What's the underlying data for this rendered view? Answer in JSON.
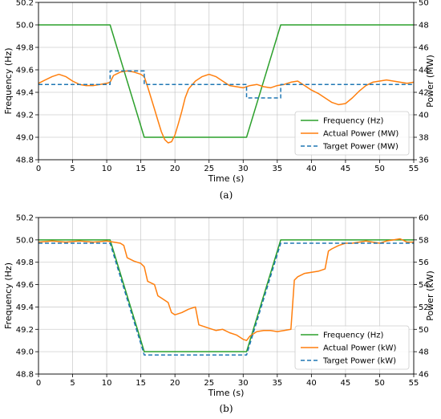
{
  "chart_data": [
    {
      "type": "line",
      "caption": "(a)",
      "xlabel": "Time (s)",
      "ylabel": "Frequency (Hz)",
      "ylabel_right": "Power (MW)",
      "xlim": [
        0,
        55
      ],
      "ylim": [
        48.8,
        50.2
      ],
      "ylim_right": [
        36,
        50
      ],
      "xticks": [
        "0",
        "5",
        "10",
        "15",
        "20",
        "25",
        "30",
        "35",
        "40",
        "45",
        "50",
        "55"
      ],
      "yticks": [
        "48.8",
        "49.0",
        "49.2",
        "49.4",
        "49.6",
        "49.8",
        "50.0",
        "50.2"
      ],
      "yticks_right": [
        "36",
        "38",
        "40",
        "42",
        "44",
        "46",
        "48",
        "50"
      ],
      "grid": true,
      "legend_position": "lower-right",
      "series": [
        {
          "name": "Frequency (Hz)",
          "axis": "left",
          "color": "#2ca02c",
          "style": "solid",
          "x": [
            0,
            10.5,
            15.5,
            30.5,
            35.5,
            55
          ],
          "y": [
            50.0,
            50.0,
            49.0,
            49.0,
            50.0,
            50.0
          ]
        },
        {
          "name": "Actual Power (MW)",
          "axis": "right",
          "color": "#ff7f0e",
          "style": "solid",
          "x": [
            0,
            1,
            2,
            3,
            4,
            5,
            6,
            7,
            8,
            9,
            10,
            10.5,
            11,
            12,
            13,
            14,
            15,
            15.5,
            16,
            16.5,
            17,
            17.5,
            18,
            18.5,
            19,
            19.5,
            20,
            20.5,
            21,
            21.5,
            22,
            23,
            24,
            25,
            26,
            27,
            28,
            29,
            30,
            31,
            32,
            33,
            34,
            35,
            36,
            37,
            38,
            39,
            40,
            41,
            42,
            43,
            44,
            45,
            46,
            47,
            48,
            49,
            50,
            51,
            52,
            53,
            54,
            55
          ],
          "y": [
            42.8,
            43.1,
            43.4,
            43.6,
            43.4,
            43.0,
            42.7,
            42.6,
            42.6,
            42.7,
            42.8,
            42.9,
            43.5,
            43.8,
            43.9,
            43.8,
            43.6,
            43.4,
            42.5,
            41.5,
            40.5,
            39.5,
            38.5,
            37.8,
            37.5,
            37.6,
            38.2,
            39.2,
            40.3,
            41.5,
            42.3,
            43.0,
            43.4,
            43.6,
            43.4,
            43.0,
            42.6,
            42.5,
            42.4,
            42.6,
            42.7,
            42.5,
            42.4,
            42.6,
            42.7,
            42.9,
            43.0,
            42.6,
            42.2,
            41.9,
            41.5,
            41.1,
            40.9,
            41.0,
            41.5,
            42.1,
            42.6,
            42.9,
            43.0,
            43.1,
            43.0,
            42.9,
            42.8,
            42.9
          ]
        },
        {
          "name": "Target Power (MW)",
          "axis": "right",
          "color": "#1f77b4",
          "style": "dashed",
          "x": [
            0,
            10.5,
            10.5,
            15.5,
            15.5,
            30.5,
            30.5,
            35.5,
            35.5,
            55
          ],
          "y": [
            42.7,
            42.7,
            43.9,
            43.9,
            42.7,
            42.7,
            41.5,
            41.5,
            42.7,
            42.7
          ]
        }
      ]
    },
    {
      "type": "line",
      "caption": "(b)",
      "xlabel": "Time (s)",
      "ylabel": "Frequency (Hz)",
      "ylabel_right": "Power (kW)",
      "xlim": [
        0,
        55
      ],
      "ylim": [
        48.8,
        50.2
      ],
      "ylim_right": [
        46,
        60
      ],
      "xticks": [
        "0",
        "5",
        "10",
        "15",
        "20",
        "25",
        "30",
        "35",
        "40",
        "45",
        "50",
        "55"
      ],
      "yticks": [
        "48.8",
        "49.0",
        "49.2",
        "49.4",
        "49.6",
        "49.8",
        "50.0",
        "50.2"
      ],
      "yticks_right": [
        "46",
        "48",
        "50",
        "52",
        "54",
        "56",
        "58",
        "60"
      ],
      "grid": true,
      "legend_position": "lower-right",
      "series": [
        {
          "name": "Frequency (Hz)",
          "axis": "left",
          "color": "#2ca02c",
          "style": "solid",
          "x": [
            0,
            10.5,
            15.5,
            30.5,
            35.5,
            55
          ],
          "y": [
            50.0,
            50.0,
            49.0,
            49.0,
            50.0,
            50.0
          ]
        },
        {
          "name": "Actual Power (kW)",
          "axis": "right",
          "color": "#ff7f0e",
          "style": "solid",
          "x": [
            0,
            2,
            4,
            6,
            8,
            10,
            11,
            12,
            12.5,
            13,
            14,
            15,
            15.5,
            16,
            17,
            17.5,
            18,
            19,
            19.5,
            20,
            21,
            22,
            23,
            23.5,
            24,
            25,
            26,
            27,
            28,
            29,
            30,
            30.5,
            31,
            32,
            33,
            34,
            35,
            36,
            37,
            37.5,
            38,
            39,
            40,
            41,
            42,
            42.5,
            43,
            44,
            45,
            46,
            47,
            48,
            49,
            50,
            51,
            52,
            53,
            54,
            55
          ],
          "y": [
            57.8,
            57.9,
            57.8,
            57.9,
            57.8,
            57.9,
            57.8,
            57.7,
            57.5,
            56.4,
            56.1,
            55.9,
            55.6,
            54.3,
            54.0,
            53.0,
            52.8,
            52.4,
            51.5,
            51.3,
            51.5,
            51.8,
            52.0,
            50.4,
            50.3,
            50.1,
            49.9,
            50.0,
            49.7,
            49.5,
            49.1,
            49.0,
            49.4,
            49.8,
            49.9,
            49.9,
            49.8,
            49.9,
            50.0,
            54.4,
            54.7,
            55.0,
            55.1,
            55.2,
            55.4,
            57.0,
            57.2,
            57.5,
            57.7,
            57.7,
            57.8,
            57.9,
            57.8,
            57.7,
            57.9,
            58.0,
            58.1,
            57.8,
            57.8
          ]
        },
        {
          "name": "Target Power (kW)",
          "axis": "right",
          "color": "#1f77b4",
          "style": "dashed",
          "x": [
            0,
            10.5,
            15.5,
            30.5,
            35.5,
            55
          ],
          "y": [
            57.7,
            57.7,
            47.7,
            47.7,
            57.7,
            57.7
          ]
        }
      ]
    }
  ]
}
